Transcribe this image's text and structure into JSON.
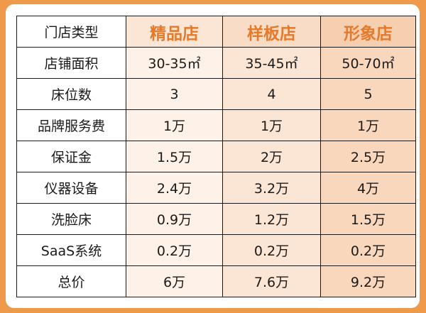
{
  "table": {
    "corner": "门店类型",
    "columns": [
      "精品店",
      "样板店",
      "形象店"
    ],
    "rows": [
      {
        "label": "店铺面积",
        "values": [
          "30-35㎡",
          "35-45㎡",
          "50-70㎡"
        ]
      },
      {
        "label": "床位数",
        "values": [
          "3",
          "4",
          "5"
        ]
      },
      {
        "label": "品牌服务费",
        "values": [
          "1万",
          "1万",
          "1万"
        ]
      },
      {
        "label": "保证金",
        "values": [
          "1.5万",
          "2万",
          "2.5万"
        ]
      },
      {
        "label": "仪器设备",
        "values": [
          "2.4万",
          "3.2万",
          "4万"
        ]
      },
      {
        "label": "洗脸床",
        "values": [
          "0.9万",
          "1.2万",
          "1.5万"
        ]
      },
      {
        "label": "SaaS系统",
        "values": [
          "0.2万",
          "0.2万",
          "0.2万"
        ]
      },
      {
        "label": "总价",
        "values": [
          "6万",
          "7.6万",
          "9.2万"
        ]
      }
    ]
  },
  "colors": {
    "frame": "#ee9a4a",
    "header_text": "#e57a2c"
  }
}
